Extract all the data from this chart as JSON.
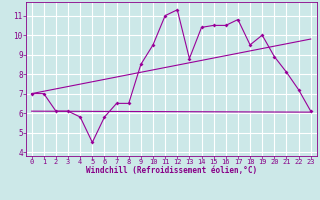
{
  "title": "",
  "xlabel": "Windchill (Refroidissement éolien,°C)",
  "bg_color": "#cce8e8",
  "grid_color": "#aadddd",
  "line_color": "#990099",
  "xlim": [
    -0.5,
    23.5
  ],
  "ylim": [
    3.8,
    11.7
  ],
  "xticks": [
    0,
    1,
    2,
    3,
    4,
    5,
    6,
    7,
    8,
    9,
    10,
    11,
    12,
    13,
    14,
    15,
    16,
    17,
    18,
    19,
    20,
    21,
    22,
    23
  ],
  "yticks": [
    4,
    5,
    6,
    7,
    8,
    9,
    10,
    11
  ],
  "line1_x": [
    0,
    1,
    2,
    3,
    4,
    5,
    6,
    7,
    8,
    9,
    10,
    11,
    12,
    13,
    14,
    15,
    16,
    17,
    18,
    19,
    20,
    21,
    22,
    23
  ],
  "line1_y": [
    7.0,
    7.0,
    6.1,
    6.1,
    5.8,
    4.5,
    5.8,
    6.5,
    6.5,
    8.5,
    9.5,
    11.0,
    11.3,
    8.8,
    10.4,
    10.5,
    10.5,
    10.8,
    9.5,
    10.0,
    8.9,
    8.1,
    7.2,
    6.1
  ],
  "trend1_x": [
    0,
    23
  ],
  "trend1_y": [
    7.0,
    9.8
  ],
  "trend2_x": [
    0,
    23
  ],
  "trend2_y": [
    6.1,
    6.05
  ],
  "font_color": "#880088",
  "tick_fontsize": 5.0,
  "xlabel_fontsize": 5.5
}
